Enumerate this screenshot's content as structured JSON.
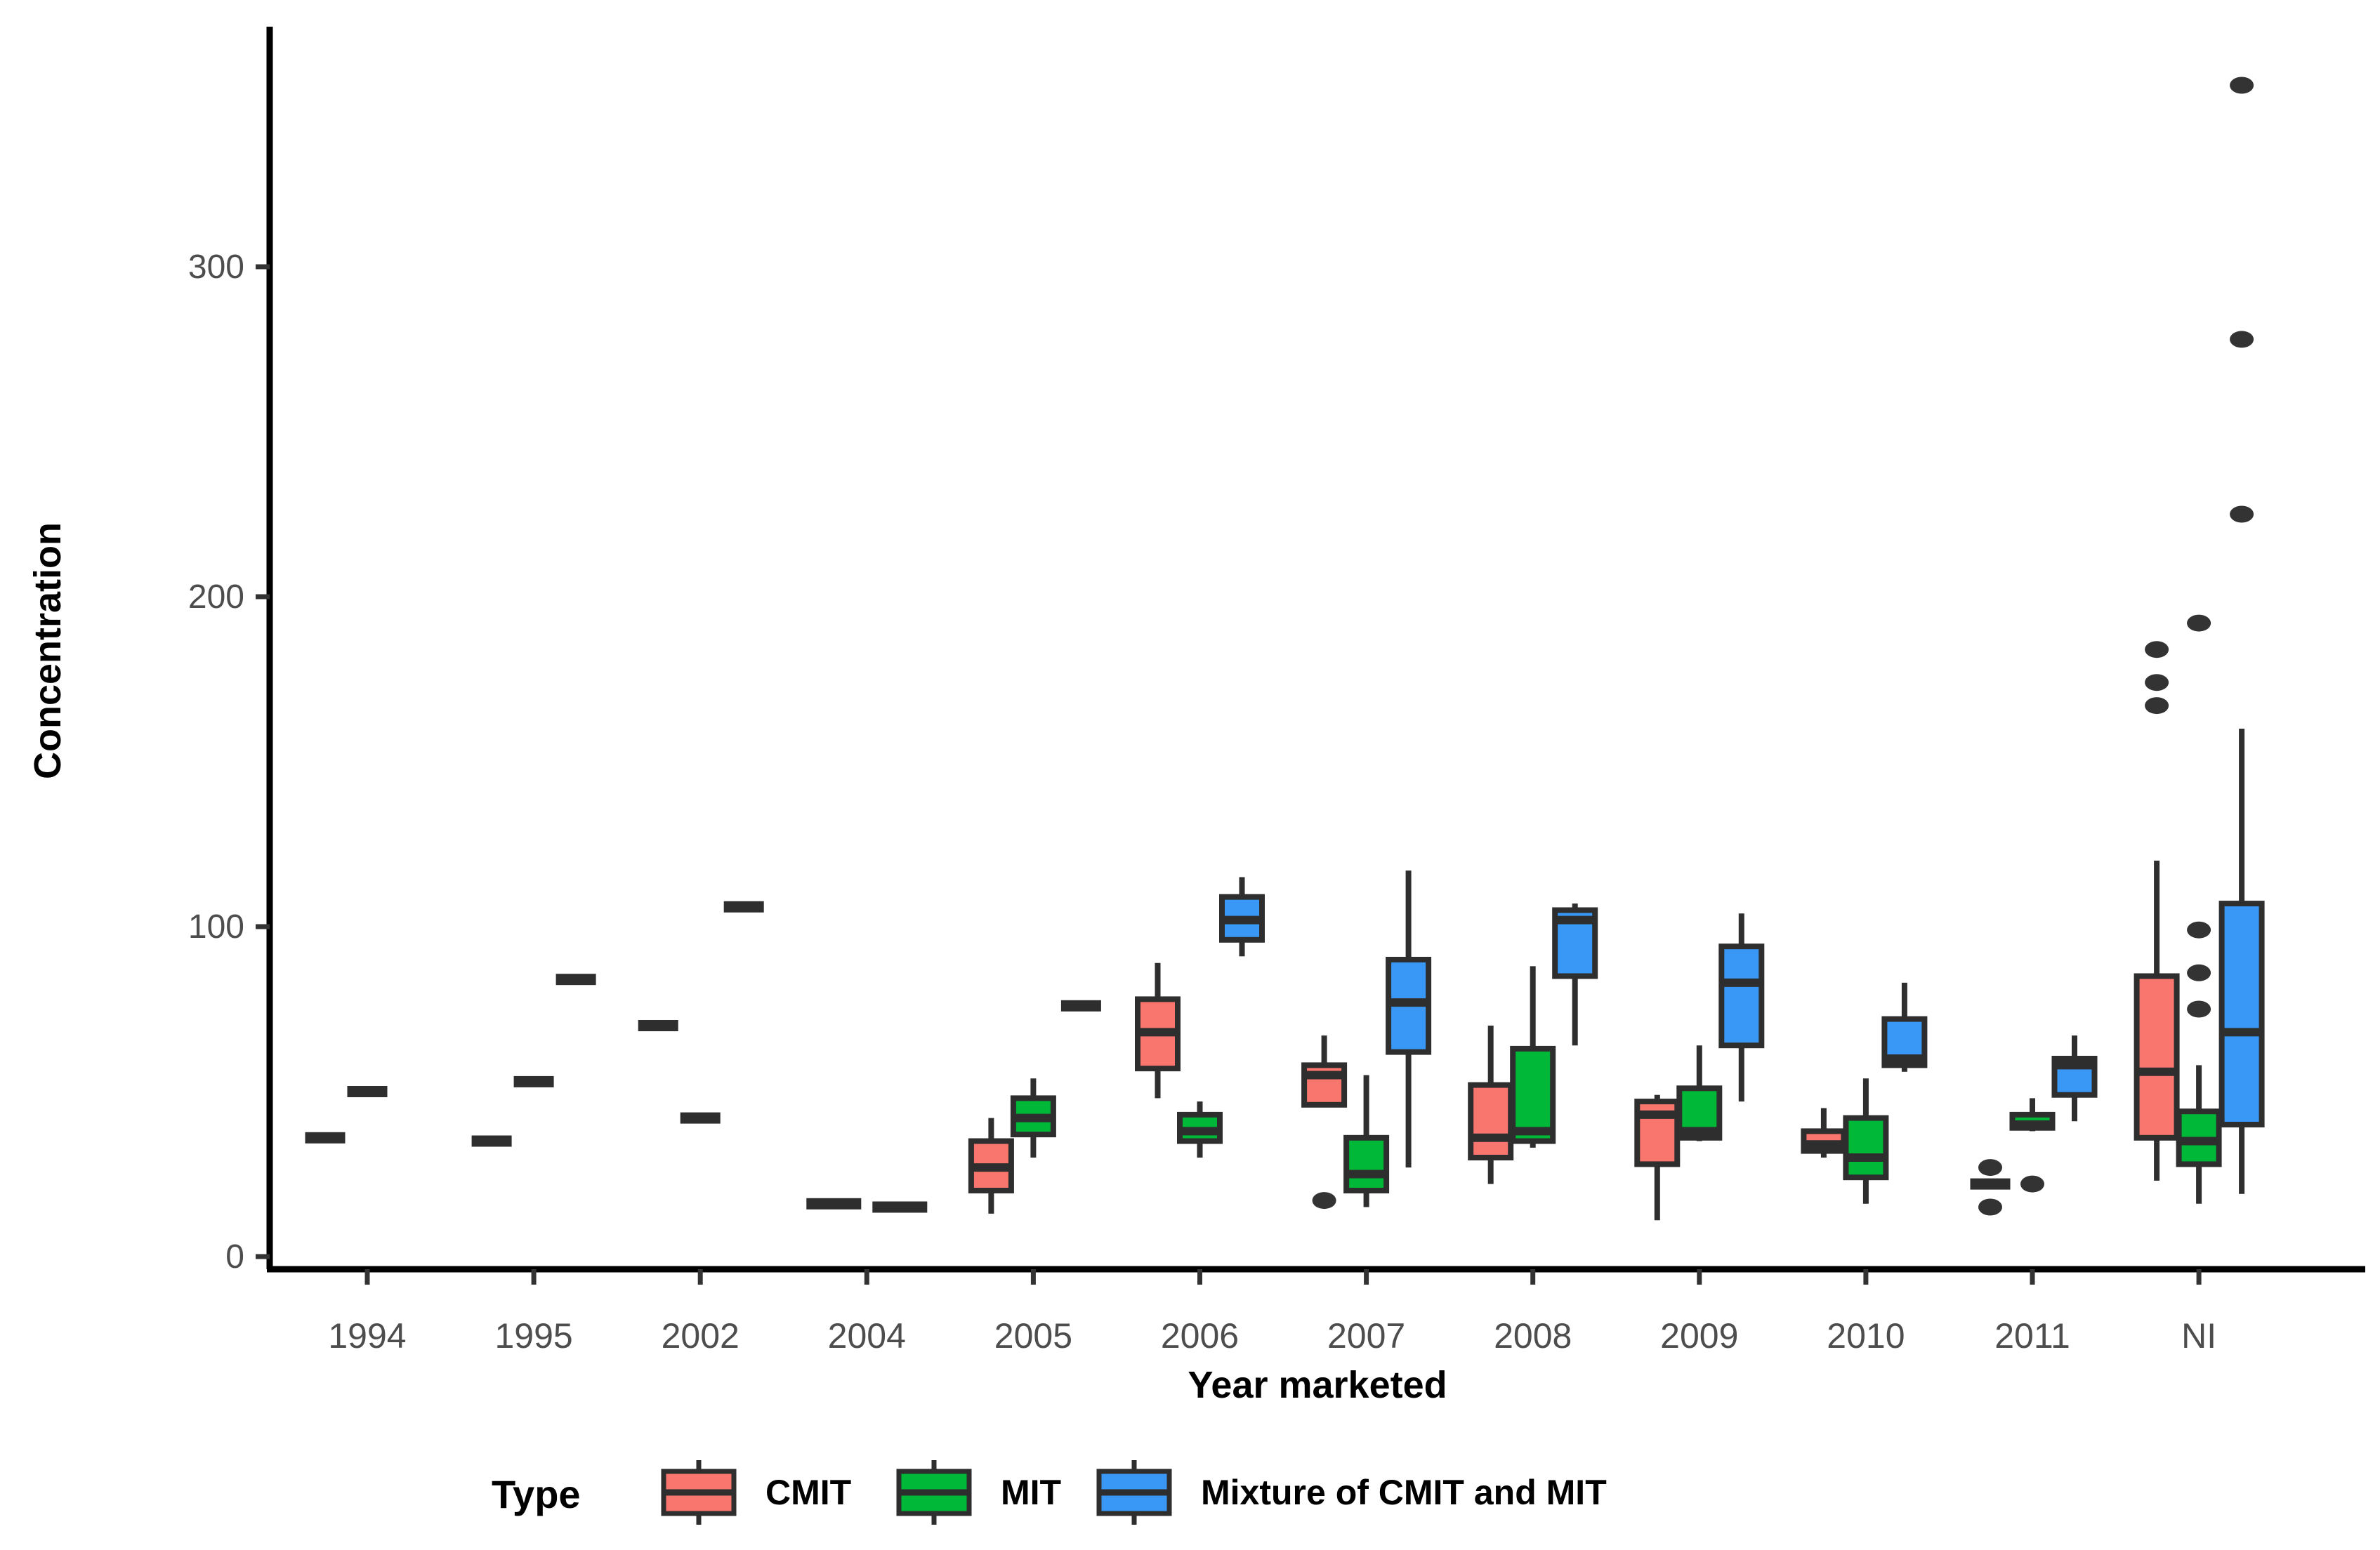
{
  "figure": {
    "y_axis_title": "Concentration",
    "x_axis_title": "Year marketed",
    "tick_color": "#4D4D4D",
    "axis_color": "#000000",
    "box_border_color": "#2E2E2E",
    "outlier_color": "#333333"
  },
  "legend": {
    "title": "Type",
    "items": [
      {
        "label": "CMIT",
        "color": "#F8766D"
      },
      {
        "label": "MIT",
        "color": "#00B838"
      },
      {
        "label": "Mixture of CMIT and MIT",
        "color": "#3998F6"
      }
    ]
  },
  "chart_data": {
    "type": "boxplot",
    "title": "",
    "xlabel": "Year marketed",
    "ylabel": "Concentration",
    "x_categories": [
      "1994",
      "1995",
      "2002",
      "2004",
      "2005",
      "2006",
      "2007",
      "2008",
      "2009",
      "2010",
      "2011",
      "NI"
    ],
    "y_ticks": [
      0,
      100,
      200,
      300
    ],
    "ylim": [
      -10,
      373
    ],
    "grid": "off",
    "legend_position": "bottom",
    "series": [
      "CMIT",
      "MIT",
      "Mixture of CMIT and MIT"
    ],
    "boxes": [
      {
        "year": "1994",
        "type": "CMIT",
        "stats": [
          36,
          36,
          36,
          36,
          36
        ],
        "outliers": [],
        "dx": -60,
        "w": 57
      },
      {
        "year": "1994",
        "type": "MIT",
        "stats": [
          50,
          50,
          50,
          50,
          50
        ],
        "outliers": [],
        "dx": 0,
        "w": 57
      },
      {
        "year": "1995",
        "type": "CMIT",
        "stats": [
          35,
          35,
          35,
          35,
          35
        ],
        "outliers": [],
        "dx": -60,
        "w": 57
      },
      {
        "year": "1995",
        "type": "MIT",
        "stats": [
          53,
          53,
          53,
          53,
          53
        ],
        "outliers": [],
        "dx": 0,
        "w": 57
      },
      {
        "year": "1995",
        "type": "Mixture",
        "stats": [
          84,
          84,
          84,
          84,
          84
        ],
        "outliers": [],
        "dx": 60,
        "w": 57
      },
      {
        "year": "2002",
        "type": "CMIT",
        "stats": [
          70,
          70,
          70,
          70,
          70
        ],
        "outliers": [],
        "dx": -60,
        "w": 57
      },
      {
        "year": "2002",
        "type": "MIT",
        "stats": [
          42,
          42,
          42,
          42,
          42
        ],
        "outliers": [],
        "dx": 0,
        "w": 57
      },
      {
        "year": "2002",
        "type": "Mixture",
        "stats": [
          106,
          106,
          106,
          106,
          106
        ],
        "outliers": [],
        "dx": 62,
        "w": 57
      },
      {
        "year": "2004",
        "type": "CMIT",
        "stats": [
          16,
          16,
          16,
          16,
          16
        ],
        "outliers": [],
        "dx": -47,
        "w": 78
      },
      {
        "year": "2004",
        "type": "MIT",
        "stats": [
          15,
          15,
          15,
          15,
          15
        ],
        "outliers": [],
        "dx": 47,
        "w": 78
      },
      {
        "year": "2005",
        "type": "CMIT",
        "stats": [
          13,
          20,
          27,
          35,
          42
        ],
        "outliers": [],
        "dx": -60,
        "w": 57
      },
      {
        "year": "2005",
        "type": "MIT",
        "stats": [
          30,
          37,
          42,
          48,
          54
        ],
        "outliers": [],
        "dx": 0,
        "w": 57
      },
      {
        "year": "2005",
        "type": "Mixture",
        "stats": [
          76,
          76,
          76,
          76,
          76
        ],
        "outliers": [],
        "dx": 68,
        "w": 57
      },
      {
        "year": "2006",
        "type": "CMIT",
        "stats": [
          48,
          57,
          68,
          78,
          89
        ],
        "outliers": [],
        "dx": -60,
        "w": 57
      },
      {
        "year": "2006",
        "type": "MIT",
        "stats": [
          30,
          35,
          38,
          43,
          47
        ],
        "outliers": [],
        "dx": 0,
        "w": 57
      },
      {
        "year": "2006",
        "type": "Mixture",
        "stats": [
          91,
          96,
          102,
          109,
          115
        ],
        "outliers": [],
        "dx": 60,
        "w": 57
      },
      {
        "year": "2007",
        "type": "CMIT",
        "stats": [
          46,
          46,
          55,
          58,
          67
        ],
        "outliers": [
          17
        ],
        "dx": -60,
        "w": 57
      },
      {
        "year": "2007",
        "type": "MIT",
        "stats": [
          15,
          20,
          25,
          36,
          55
        ],
        "outliers": [],
        "dx": 0,
        "w": 57
      },
      {
        "year": "2007",
        "type": "Mixture",
        "stats": [
          27,
          62,
          77,
          90,
          117
        ],
        "outliers": [],
        "dx": 60,
        "w": 57
      },
      {
        "year": "2008",
        "type": "CMIT",
        "stats": [
          22,
          30,
          36,
          52,
          70
        ],
        "outliers": [],
        "dx": -60,
        "w": 57
      },
      {
        "year": "2008",
        "type": "MIT",
        "stats": [
          33,
          35,
          38,
          63,
          88
        ],
        "outliers": [],
        "dx": 0,
        "w": 57
      },
      {
        "year": "2008",
        "type": "Mixture",
        "stats": [
          64,
          85,
          102,
          105,
          107
        ],
        "outliers": [],
        "dx": 60,
        "w": 57
      },
      {
        "year": "2009",
        "type": "CMIT",
        "stats": [
          11,
          28,
          43,
          47,
          49
        ],
        "outliers": [],
        "dx": -60,
        "w": 57
      },
      {
        "year": "2009",
        "type": "MIT",
        "stats": [
          35,
          36,
          38,
          51,
          64
        ],
        "outliers": [],
        "dx": 0,
        "w": 57
      },
      {
        "year": "2009",
        "type": "Mixture",
        "stats": [
          47,
          64,
          83,
          94,
          104
        ],
        "outliers": [],
        "dx": 60,
        "w": 57
      },
      {
        "year": "2010",
        "type": "CMIT",
        "stats": [
          30,
          32,
          34,
          38,
          45
        ],
        "outliers": [],
        "dx": -60,
        "w": 57
      },
      {
        "year": "2010",
        "type": "MIT",
        "stats": [
          16,
          24,
          30,
          42,
          54
        ],
        "outliers": [],
        "dx": 0,
        "w": 57
      },
      {
        "year": "2010",
        "type": "Mixture",
        "stats": [
          56,
          58,
          60,
          72,
          83
        ],
        "outliers": [],
        "dx": 55,
        "w": 57
      },
      {
        "year": "2011",
        "type": "CMIT",
        "stats": [
          22,
          22,
          22,
          22,
          22
        ],
        "outliers": [
          27,
          15
        ],
        "dx": -60,
        "w": 57
      },
      {
        "year": "2011",
        "type": "MIT",
        "stats": [
          38,
          39,
          40,
          43,
          48
        ],
        "outliers": [
          22
        ],
        "dx": 0,
        "w": 57
      },
      {
        "year": "2011",
        "type": "Mixture",
        "stats": [
          41,
          49,
          58,
          60,
          67
        ],
        "outliers": [],
        "dx": 60,
        "w": 57
      },
      {
        "year": "NI",
        "type": "CMIT",
        "stats": [
          23,
          36,
          56,
          85,
          120
        ],
        "outliers": [
          184,
          174,
          167
        ],
        "dx": -60,
        "w": 57
      },
      {
        "year": "NI",
        "type": "MIT",
        "stats": [
          16,
          28,
          35,
          44,
          58
        ],
        "outliers": [
          192,
          99,
          86,
          75
        ],
        "dx": 0,
        "w": 57
      },
      {
        "year": "NI",
        "type": "Mixture",
        "stats": [
          19,
          40,
          68,
          107,
          160
        ],
        "outliers": [
          355,
          278,
          225
        ],
        "dx": 61,
        "w": 57
      }
    ]
  }
}
